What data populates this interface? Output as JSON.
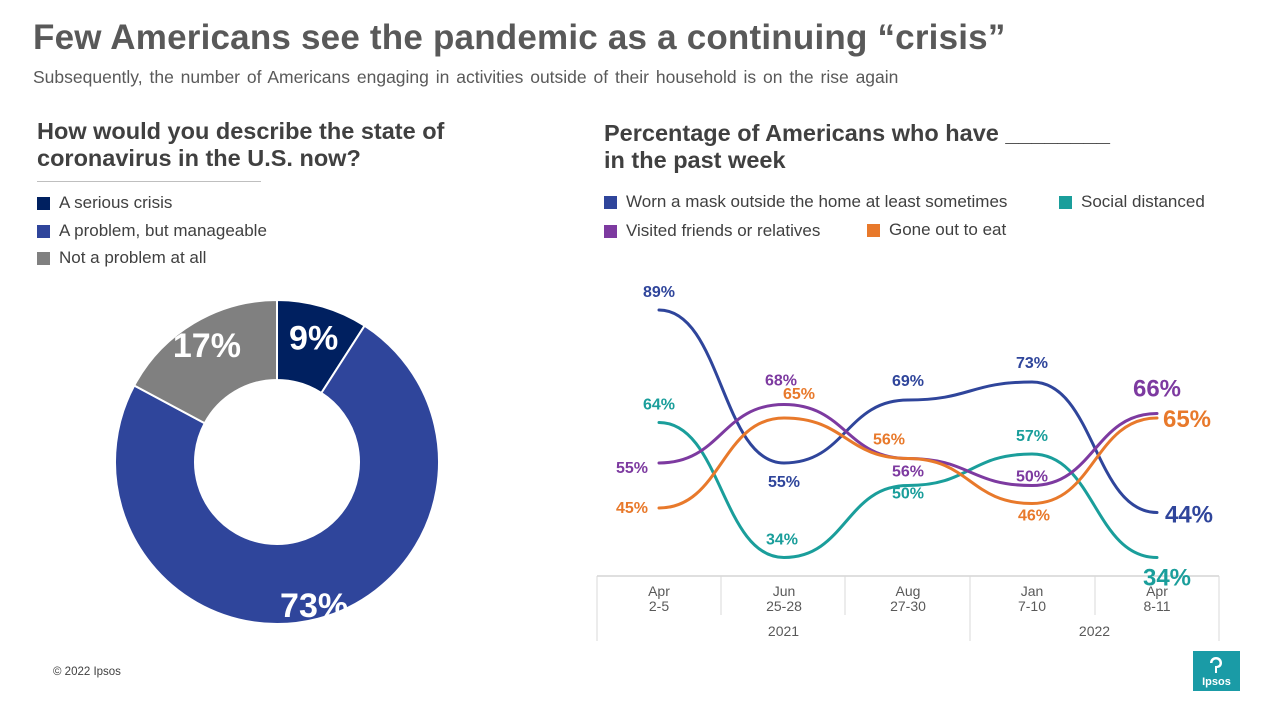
{
  "header": {
    "title": "Few Americans see the pandemic as a continuing “crisis”",
    "subtitle": "Subsequently,  the number  of Americans  engaging  in activities outside of their household  is on the rise again"
  },
  "left": {
    "question": "How would you describe the state of coronavirus in the U.S. now?"
  },
  "right": {
    "question_line1": "Percentage of Americans who have ________",
    "question_line2": "in the past week"
  },
  "chart_data": [
    {
      "type": "pie",
      "style": "donut",
      "title": "How would you describe the state of coronavirus in the U.S. now?",
      "slices": [
        {
          "label": "A serious crisis",
          "value": 9,
          "display": "9%",
          "color": "#002060"
        },
        {
          "label": "A problem, but manageable",
          "value": 73,
          "display": "73%",
          "color": "#2f459b"
        },
        {
          "label": "Not a problem at all",
          "value": 17,
          "display": "17%",
          "color": "#808080"
        }
      ]
    },
    {
      "type": "line",
      "title": "Percentage of Americans who have ________ in the past week",
      "categories": [
        {
          "month": "Apr",
          "days": "2-5"
        },
        {
          "month": "Jun",
          "days": "25-28"
        },
        {
          "month": "Aug",
          "days": "27-30"
        },
        {
          "month": "Jan",
          "days": "7-10"
        },
        {
          "month": "Apr",
          "days": "8-11"
        }
      ],
      "years": [
        {
          "label": "2021",
          "span": [
            0,
            2
          ]
        },
        {
          "label": "2022",
          "span": [
            3,
            4
          ]
        }
      ],
      "series": [
        {
          "name": "Worn a mask outside the home at least sometimes",
          "color": "#2f459b",
          "values": [
            89,
            55,
            69,
            73,
            44
          ],
          "labels": [
            "89%",
            "55%",
            "69%",
            "73%",
            "44%"
          ]
        },
        {
          "name": "Social distanced",
          "color": "#1a9e9b",
          "values": [
            64,
            34,
            50,
            57,
            34
          ],
          "labels": [
            "64%",
            "34%",
            "50%",
            "57%",
            "34%"
          ]
        },
        {
          "name": "Visited friends or relatives",
          "color": "#7d3aa0",
          "values": [
            55,
            68,
            56,
            50,
            66
          ],
          "labels": [
            "55%",
            "68%",
            "56%",
            "50%",
            "66%"
          ]
        },
        {
          "name": "Gone out to eat",
          "color": "#e8792b",
          "values": [
            45,
            65,
            56,
            46,
            65
          ],
          "labels": [
            "45%",
            "65%",
            "56%",
            "46%",
            "65%"
          ]
        }
      ]
    }
  ],
  "footer": {
    "copyright": "© 2022 Ipsos",
    "logo_text": "Ipsos"
  }
}
